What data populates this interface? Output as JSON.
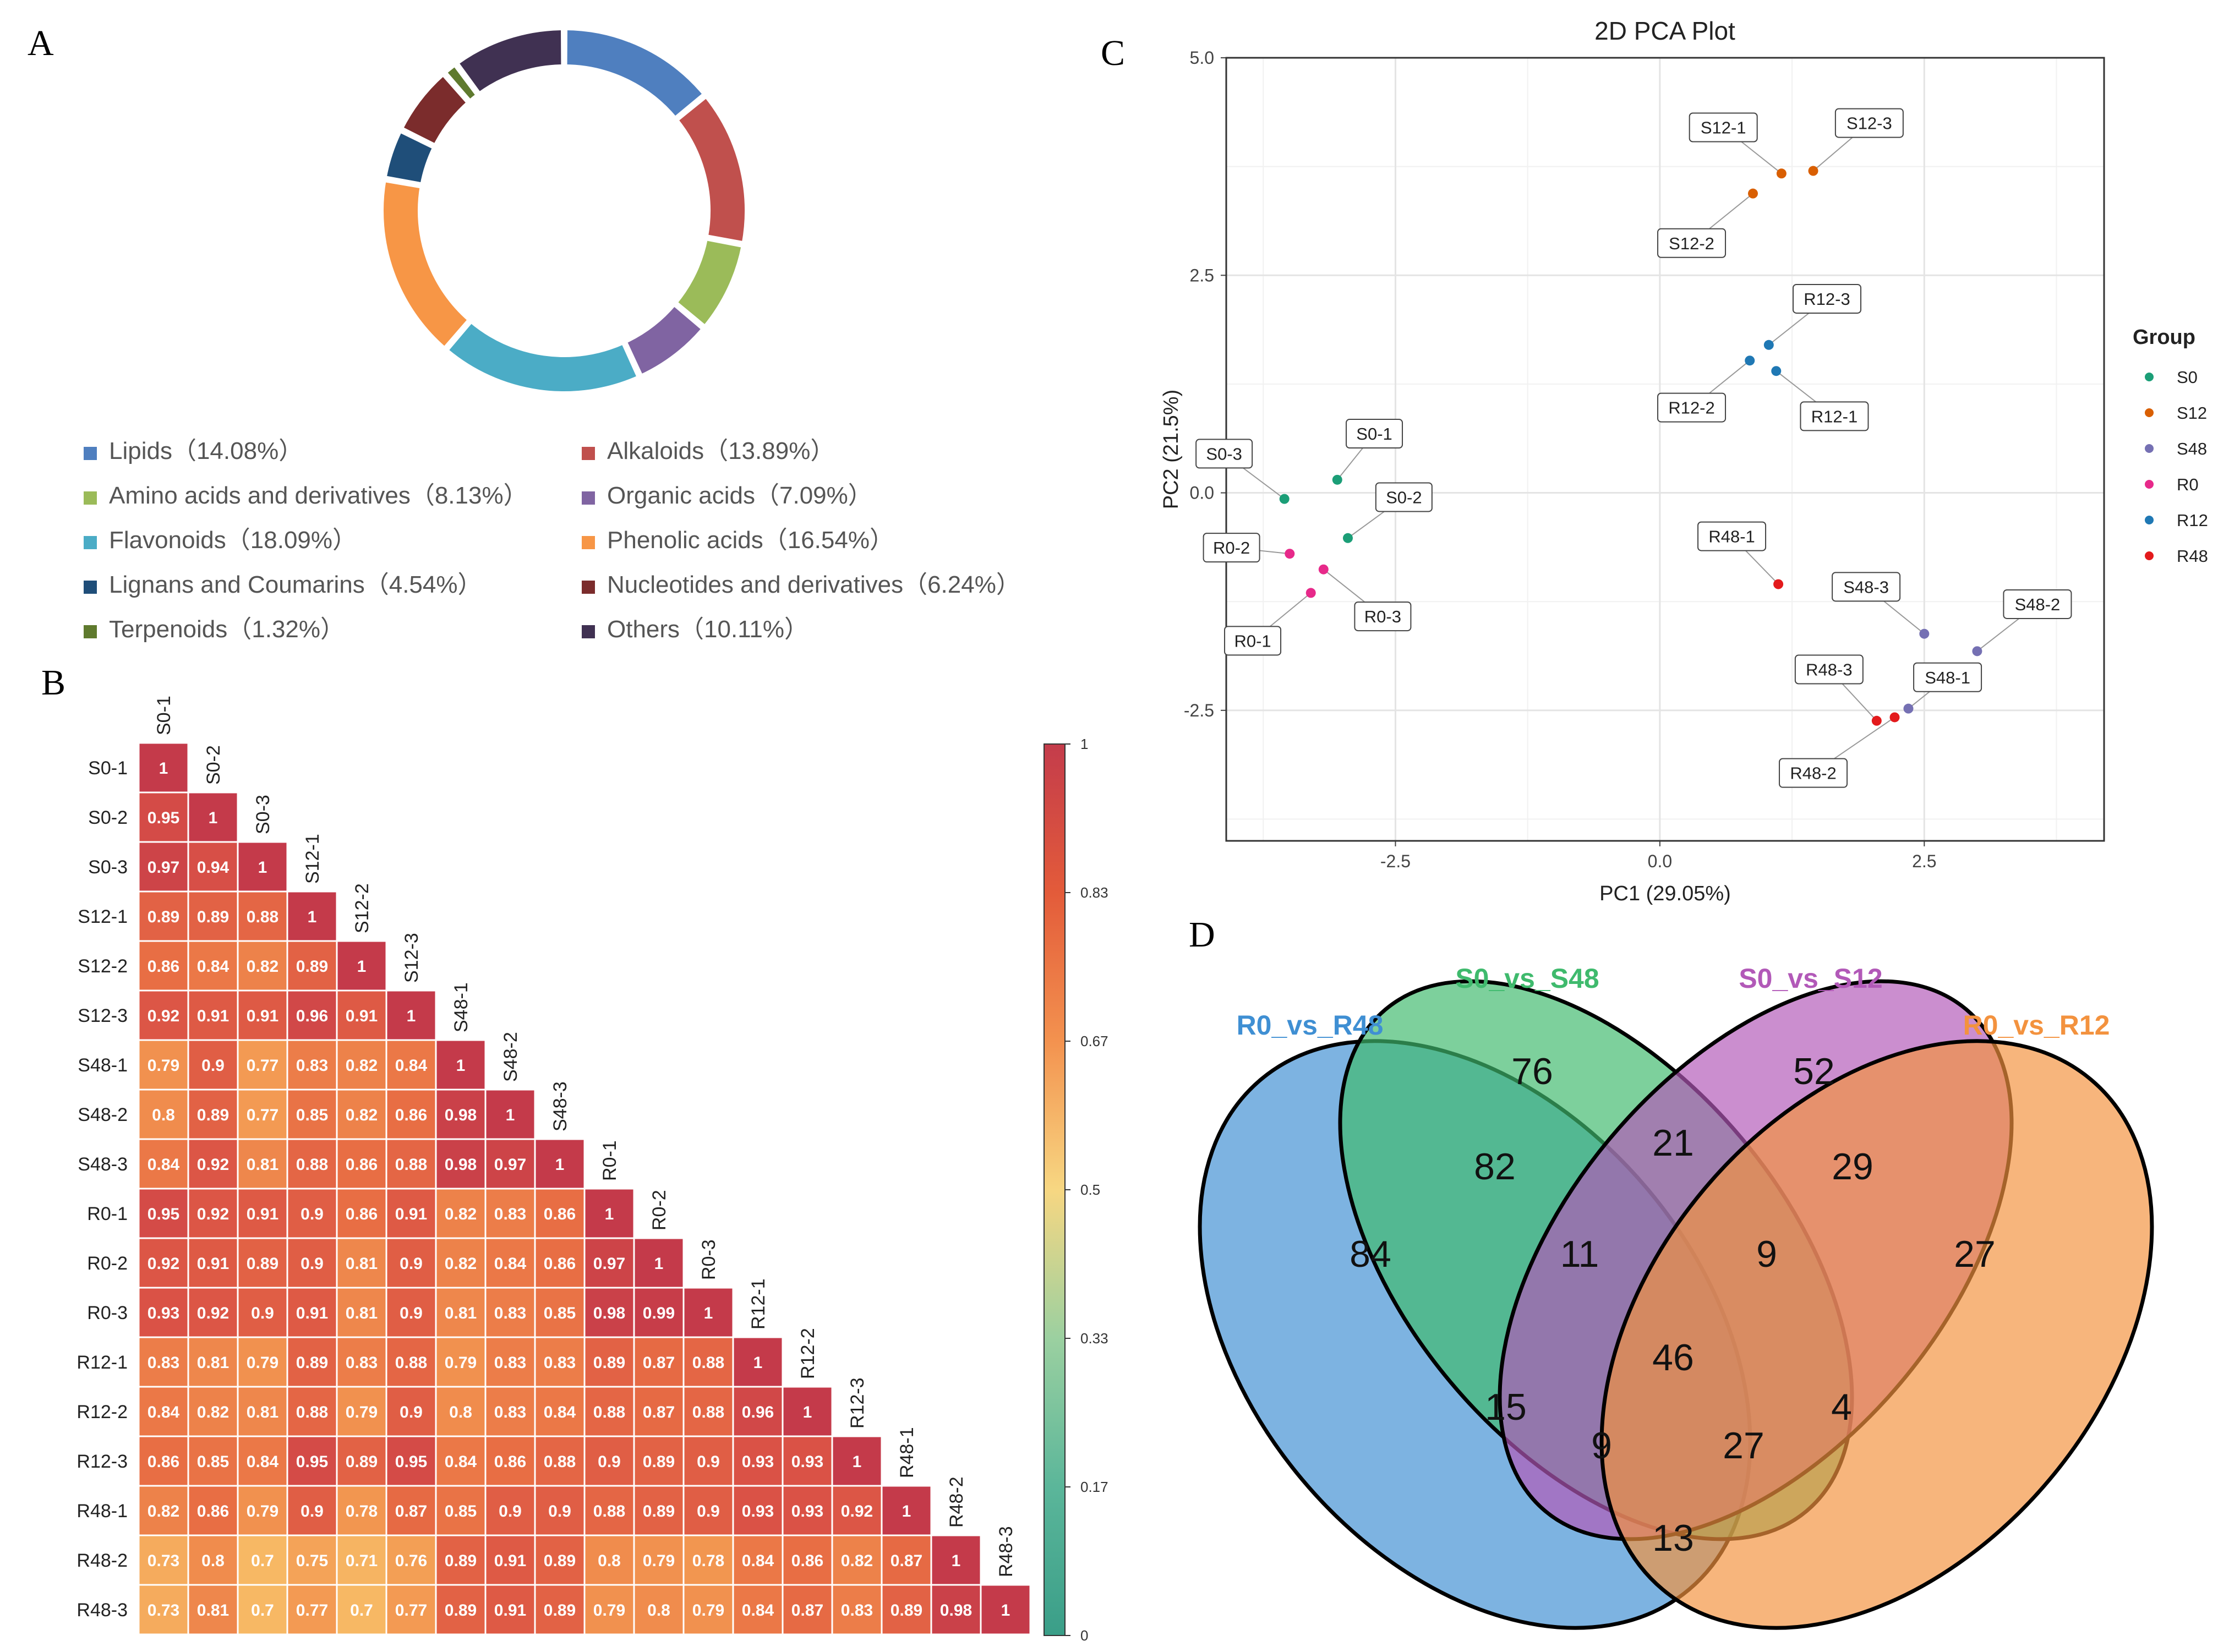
{
  "panel_labels": {
    "a": "A",
    "b": "B",
    "c": "C",
    "d": "D"
  },
  "chart_data": [
    {
      "panel": "A",
      "type": "pie",
      "donut": true,
      "slices": [
        {
          "label": "Lipids",
          "pct_text": "（14.08%）",
          "value": 14.08,
          "color": "#4f7fbf"
        },
        {
          "label": "Alkaloids",
          "pct_text": "（13.89%）",
          "value": 13.89,
          "color": "#c0504d"
        },
        {
          "label": "Amino acids and derivatives",
          "pct_text": "（8.13%）",
          "value": 8.13,
          "color": "#9bbb59"
        },
        {
          "label": "Organic acids",
          "pct_text": "（7.09%）",
          "value": 7.09,
          "color": "#8064a2"
        },
        {
          "label": "Flavonoids",
          "pct_text": "（18.09%）",
          "value": 18.09,
          "color": "#4bacc6"
        },
        {
          "label": "Phenolic acids",
          "pct_text": "（16.54%）",
          "value": 16.54,
          "color": "#f79646"
        },
        {
          "label": "Lignans and Coumarins",
          "pct_text": "（4.54%）",
          "value": 4.54,
          "color": "#1f4e79"
        },
        {
          "label": "Nucleotides and derivatives",
          "pct_text": "（6.24%）",
          "value": 6.24,
          "color": "#7b2c2c"
        },
        {
          "label": "Terpenoids",
          "pct_text": "（1.32%）",
          "value": 1.32,
          "color": "#5f7a2e"
        },
        {
          "label": "Others",
          "pct_text": "（10.11%）",
          "value": 10.11,
          "color": "#403152"
        }
      ]
    },
    {
      "panel": "B",
      "type": "heatmap",
      "labels": [
        "S0-1",
        "S0-2",
        "S0-3",
        "S12-1",
        "S12-2",
        "S12-3",
        "S48-1",
        "S48-2",
        "S48-3",
        "R0-1",
        "R0-2",
        "R0-3",
        "R12-1",
        "R12-2",
        "R12-3",
        "R48-1",
        "R48-2",
        "R48-3"
      ],
      "rows": [
        [
          1
        ],
        [
          0.95,
          1
        ],
        [
          0.97,
          0.94,
          1
        ],
        [
          0.89,
          0.89,
          0.88,
          1
        ],
        [
          0.86,
          0.84,
          0.82,
          0.89,
          1
        ],
        [
          0.92,
          0.91,
          0.91,
          0.96,
          0.91,
          1
        ],
        [
          0.79,
          0.9,
          0.77,
          0.83,
          0.82,
          0.84,
          1
        ],
        [
          0.8,
          0.89,
          0.77,
          0.85,
          0.82,
          0.86,
          0.98,
          1
        ],
        [
          0.84,
          0.92,
          0.81,
          0.88,
          0.86,
          0.88,
          0.98,
          0.97,
          1
        ],
        [
          0.95,
          0.92,
          0.91,
          0.9,
          0.86,
          0.91,
          0.82,
          0.83,
          0.86,
          1
        ],
        [
          0.92,
          0.91,
          0.89,
          0.9,
          0.81,
          0.9,
          0.82,
          0.84,
          0.86,
          0.97,
          1
        ],
        [
          0.93,
          0.92,
          0.9,
          0.91,
          0.81,
          0.9,
          0.81,
          0.83,
          0.85,
          0.98,
          0.99,
          1
        ],
        [
          0.83,
          0.81,
          0.79,
          0.89,
          0.83,
          0.88,
          0.79,
          0.83,
          0.83,
          0.89,
          0.87,
          0.88,
          1
        ],
        [
          0.84,
          0.82,
          0.81,
          0.88,
          0.79,
          0.9,
          0.8,
          0.83,
          0.84,
          0.88,
          0.87,
          0.88,
          0.96,
          1
        ],
        [
          0.86,
          0.85,
          0.84,
          0.95,
          0.89,
          0.95,
          0.84,
          0.86,
          0.88,
          0.9,
          0.89,
          0.9,
          0.93,
          0.93,
          1
        ],
        [
          0.82,
          0.86,
          0.79,
          0.9,
          0.78,
          0.87,
          0.85,
          0.9,
          0.9,
          0.88,
          0.89,
          0.9,
          0.93,
          0.93,
          0.92,
          1
        ],
        [
          0.73,
          0.8,
          0.7,
          0.75,
          0.71,
          0.76,
          0.89,
          0.91,
          0.89,
          0.8,
          0.79,
          0.78,
          0.84,
          0.86,
          0.82,
          0.87,
          1
        ],
        [
          0.73,
          0.81,
          0.7,
          0.77,
          0.7,
          0.77,
          0.89,
          0.91,
          0.89,
          0.79,
          0.8,
          0.79,
          0.84,
          0.87,
          0.83,
          0.89,
          0.98,
          1
        ]
      ],
      "colorbar": {
        "ticks": [
          "1",
          "0.83",
          "0.67",
          "0.5",
          "0.33",
          "0.17",
          "0"
        ],
        "colors": [
          "#c43c4b",
          "#e35b3a",
          "#f3924f",
          "#f7d782",
          "#9bd0a0",
          "#5bb69a",
          "#3a9e88"
        ]
      }
    },
    {
      "panel": "C",
      "type": "scatter",
      "title": "2D PCA Plot",
      "xlabel": "PC1 (29.05%)",
      "ylabel": "PC2 (21.5%)",
      "xlim": [
        -4.1,
        4.2
      ],
      "ylim": [
        -4.0,
        5.0
      ],
      "xticks": [
        -2.5,
        0.0,
        2.5
      ],
      "xtick_labels": [
        "-2.5",
        "0.0",
        "2.5"
      ],
      "yticks": [
        5.0,
        2.5,
        0.0,
        -2.5
      ],
      "ytick_labels": [
        "5.0",
        "2.5",
        "0.0",
        "-2.5"
      ],
      "legend_title": "Group",
      "legend_position": "right",
      "groups": [
        {
          "name": "S0",
          "color": "#1b9e77"
        },
        {
          "name": "S12",
          "color": "#d95f02"
        },
        {
          "name": "S48",
          "color": "#7570b3"
        },
        {
          "name": "R0",
          "color": "#e7298a"
        },
        {
          "name": "R12",
          "color": "#1f78b4"
        },
        {
          "name": "R48",
          "color": "#e31a1c"
        }
      ],
      "points": [
        {
          "label": "S0-1",
          "group": "S0",
          "x": -3.05,
          "y": 0.15,
          "lx": -2.7,
          "ly": 0.68
        },
        {
          "label": "S0-2",
          "group": "S0",
          "x": -2.95,
          "y": -0.52,
          "lx": -2.42,
          "ly": -0.05
        },
        {
          "label": "S0-3",
          "group": "S0",
          "x": -3.55,
          "y": -0.07,
          "lx": -4.12,
          "ly": 0.45
        },
        {
          "label": "S12-1",
          "group": "S12",
          "x": 1.15,
          "y": 3.67,
          "lx": 0.6,
          "ly": 4.2
        },
        {
          "label": "S12-2",
          "group": "S12",
          "x": 0.88,
          "y": 3.44,
          "lx": 0.3,
          "ly": 2.87
        },
        {
          "label": "S12-3",
          "group": "S12",
          "x": 1.45,
          "y": 3.7,
          "lx": 1.98,
          "ly": 4.25
        },
        {
          "label": "R12-1",
          "group": "R12",
          "x": 1.1,
          "y": 1.4,
          "lx": 1.65,
          "ly": 0.88
        },
        {
          "label": "R12-2",
          "group": "R12",
          "x": 0.85,
          "y": 1.52,
          "lx": 0.3,
          "ly": 0.98
        },
        {
          "label": "R12-3",
          "group": "R12",
          "x": 1.03,
          "y": 1.7,
          "lx": 1.58,
          "ly": 2.23
        },
        {
          "label": "R0-1",
          "group": "R0",
          "x": -3.3,
          "y": -1.15,
          "lx": -3.85,
          "ly": -1.7
        },
        {
          "label": "R0-2",
          "group": "R0",
          "x": -3.5,
          "y": -0.7,
          "lx": -4.05,
          "ly": -0.63
        },
        {
          "label": "R0-3",
          "group": "R0",
          "x": -3.18,
          "y": -0.88,
          "lx": -2.62,
          "ly": -1.42
        },
        {
          "label": "R48-1",
          "group": "R48",
          "x": 1.12,
          "y": -1.05,
          "lx": 0.68,
          "ly": -0.5
        },
        {
          "label": "R48-2",
          "group": "R48",
          "x": 2.22,
          "y": -2.58,
          "lx": 1.45,
          "ly": -3.22
        },
        {
          "label": "R48-3",
          "group": "R48",
          "x": 2.05,
          "y": -2.62,
          "lx": 1.6,
          "ly": -2.03
        },
        {
          "label": "S48-1",
          "group": "S48",
          "x": 2.35,
          "y": -2.48,
          "lx": 2.72,
          "ly": -2.12
        },
        {
          "label": "S48-2",
          "group": "S48",
          "x": 3.0,
          "y": -1.82,
          "lx": 3.57,
          "ly": -1.28
        },
        {
          "label": "S48-3",
          "group": "S48",
          "x": 2.5,
          "y": -1.62,
          "lx": 1.95,
          "ly": -1.08
        }
      ]
    },
    {
      "panel": "D",
      "type": "venn",
      "sets": [
        {
          "name": "R0_vs_R48",
          "color": "#3f8fd3"
        },
        {
          "name": "S0_vs_S48",
          "color": "#3fba6d"
        },
        {
          "name": "S0_vs_S12",
          "color": "#b259b8"
        },
        {
          "name": "R0_vs_R12",
          "color": "#f3923e"
        }
      ],
      "regions": [
        {
          "sets": [
            "R0_vs_R48"
          ],
          "value": 84
        },
        {
          "sets": [
            "S0_vs_S48"
          ],
          "value": 76
        },
        {
          "sets": [
            "S0_vs_S12"
          ],
          "value": 52
        },
        {
          "sets": [
            "R0_vs_R12"
          ],
          "value": 27
        },
        {
          "sets": [
            "R0_vs_R48",
            "S0_vs_S48"
          ],
          "value": 82
        },
        {
          "sets": [
            "S0_vs_S48",
            "S0_vs_S12"
          ],
          "value": 21
        },
        {
          "sets": [
            "S0_vs_S12",
            "R0_vs_R12"
          ],
          "value": 29
        },
        {
          "sets": [
            "R0_vs_R48",
            "S0_vs_S48",
            "S0_vs_S12"
          ],
          "value": 11
        },
        {
          "sets": [
            "S0_vs_S48",
            "S0_vs_S12",
            "R0_vs_R12"
          ],
          "value": 9
        },
        {
          "sets": [
            "R0_vs_R48",
            "S0_vs_S12"
          ],
          "value": 15
        },
        {
          "sets": [
            "R0_vs_R48",
            "S0_vs_S48",
            "S0_vs_S12",
            "R0_vs_R12"
          ],
          "value": 46
        },
        {
          "sets": [
            "S0_vs_S48",
            "R0_vs_R12"
          ],
          "value": 4
        },
        {
          "sets": [
            "R0_vs_R48",
            "S0_vs_S12",
            "R0_vs_R12"
          ],
          "value": 9
        },
        {
          "sets": [
            "R0_vs_R48",
            "S0_vs_S48",
            "R0_vs_R12"
          ],
          "value": 27
        },
        {
          "sets": [
            "R0_vs_R48",
            "R0_vs_R12"
          ],
          "value": 13
        }
      ]
    }
  ]
}
